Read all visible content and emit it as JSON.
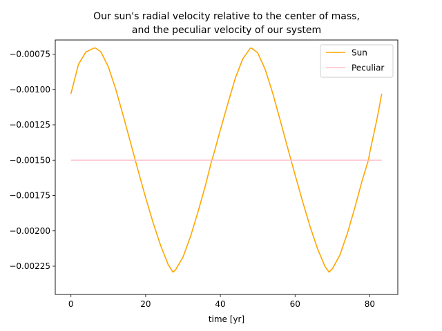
{
  "chart_data": {
    "type": "line",
    "title_line1": "Our sun's radial velocity relative to the center of mass,",
    "title_line2": "and the peculiar velocity of our system",
    "xlabel": "time [yr]",
    "ylabel": "",
    "xlim": [
      -4.2,
      87.5
    ],
    "ylim": [
      -0.00245,
      -0.00065
    ],
    "xticks": [
      0,
      20,
      40,
      60,
      80
    ],
    "xtick_labels": [
      "0",
      "20",
      "40",
      "60",
      "80"
    ],
    "yticks": [
      -0.00075,
      -0.001,
      -0.00125,
      -0.0015,
      -0.00175,
      -0.002,
      -0.00225
    ],
    "ytick_labels": [
      "−0.00075",
      "−0.00100",
      "−0.00125",
      "−0.00150",
      "−0.00175",
      "−0.00200",
      "−0.00225"
    ],
    "grid": false,
    "legend_position": "top-right",
    "series": [
      {
        "name": "Sun",
        "color": "#ffa500",
        "x": [
          0,
          2,
          4,
          6,
          6.5,
          8,
          10,
          12,
          14,
          16,
          17.2,
          18,
          20,
          22,
          24,
          26,
          27.3,
          28,
          30,
          32,
          34,
          36,
          37.7,
          38,
          40,
          42,
          44,
          46,
          48,
          48.3,
          50,
          52,
          54,
          56,
          58,
          59,
          60,
          62,
          64,
          66,
          68,
          69.1,
          70,
          72,
          74,
          76,
          78,
          79.6,
          80,
          82,
          83.2
        ],
        "y": [
          -0.00103,
          -0.000823,
          -0.000735,
          -0.000709,
          -0.000706,
          -0.000733,
          -0.000839,
          -0.000998,
          -0.001186,
          -0.00138,
          -0.001497,
          -0.001576,
          -0.001765,
          -0.001943,
          -0.002103,
          -0.002237,
          -0.002292,
          -0.002276,
          -0.002186,
          -0.002041,
          -0.001867,
          -0.00168,
          -0.0015,
          -0.001478,
          -0.001286,
          -0.0011,
          -0.00092,
          -0.000784,
          -0.000709,
          -0.000706,
          -0.000741,
          -0.000858,
          -0.001025,
          -0.001216,
          -0.001411,
          -0.001509,
          -0.001603,
          -0.001791,
          -0.001968,
          -0.002126,
          -0.002252,
          -0.002292,
          -0.002268,
          -0.002171,
          -0.002018,
          -0.001836,
          -0.00164,
          -0.001503,
          -0.001446,
          -0.0012,
          -0.00103
        ]
      },
      {
        "name": "Peculiar",
        "color": "#ffc0cb",
        "x": [
          0,
          83.2
        ],
        "y": [
          -0.0015,
          -0.0015
        ]
      }
    ]
  }
}
